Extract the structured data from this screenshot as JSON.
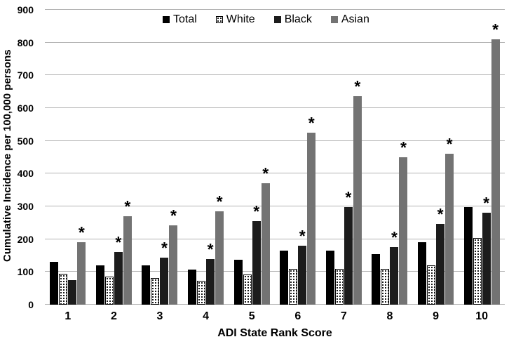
{
  "chart_data": {
    "type": "bar",
    "title": "",
    "xlabel": "ADI State Rank Score",
    "ylabel": "Cumulative Incidence per 100,000 persons",
    "categories": [
      "1",
      "2",
      "3",
      "4",
      "5",
      "6",
      "7",
      "8",
      "9",
      "10"
    ],
    "series": [
      {
        "name": "Total",
        "color": "#000000",
        "pattern": "solid",
        "values": [
          131,
          121,
          121,
          108,
          137,
          164,
          166,
          155,
          190,
          298
        ],
        "significant": [
          false,
          false,
          false,
          false,
          false,
          false,
          false,
          false,
          false,
          false
        ]
      },
      {
        "name": "White",
        "color": "#ffffff",
        "pattern": "dots",
        "values": [
          94,
          86,
          81,
          73,
          92,
          110,
          110,
          110,
          121,
          203
        ],
        "significant": [
          false,
          false,
          false,
          false,
          false,
          false,
          false,
          false,
          false,
          false
        ]
      },
      {
        "name": "Black",
        "color": "#1c1c1c",
        "pattern": "solid",
        "values": [
          76,
          161,
          143,
          140,
          255,
          179,
          298,
          176,
          246,
          281
        ],
        "significant": [
          false,
          true,
          true,
          true,
          true,
          true,
          true,
          true,
          true,
          true
        ]
      },
      {
        "name": "Asian",
        "color": "#737373",
        "pattern": "solid",
        "values": [
          191,
          269,
          242,
          284,
          370,
          526,
          636,
          449,
          461,
          810
        ],
        "significant": [
          true,
          true,
          true,
          true,
          true,
          true,
          true,
          true,
          true,
          true
        ]
      }
    ],
    "ylim": [
      0,
      900
    ],
    "ytick_step": 100,
    "grid": true,
    "legend_position": "top",
    "significance_marker": "*",
    "gridline_color": "#b3b3b3"
  }
}
